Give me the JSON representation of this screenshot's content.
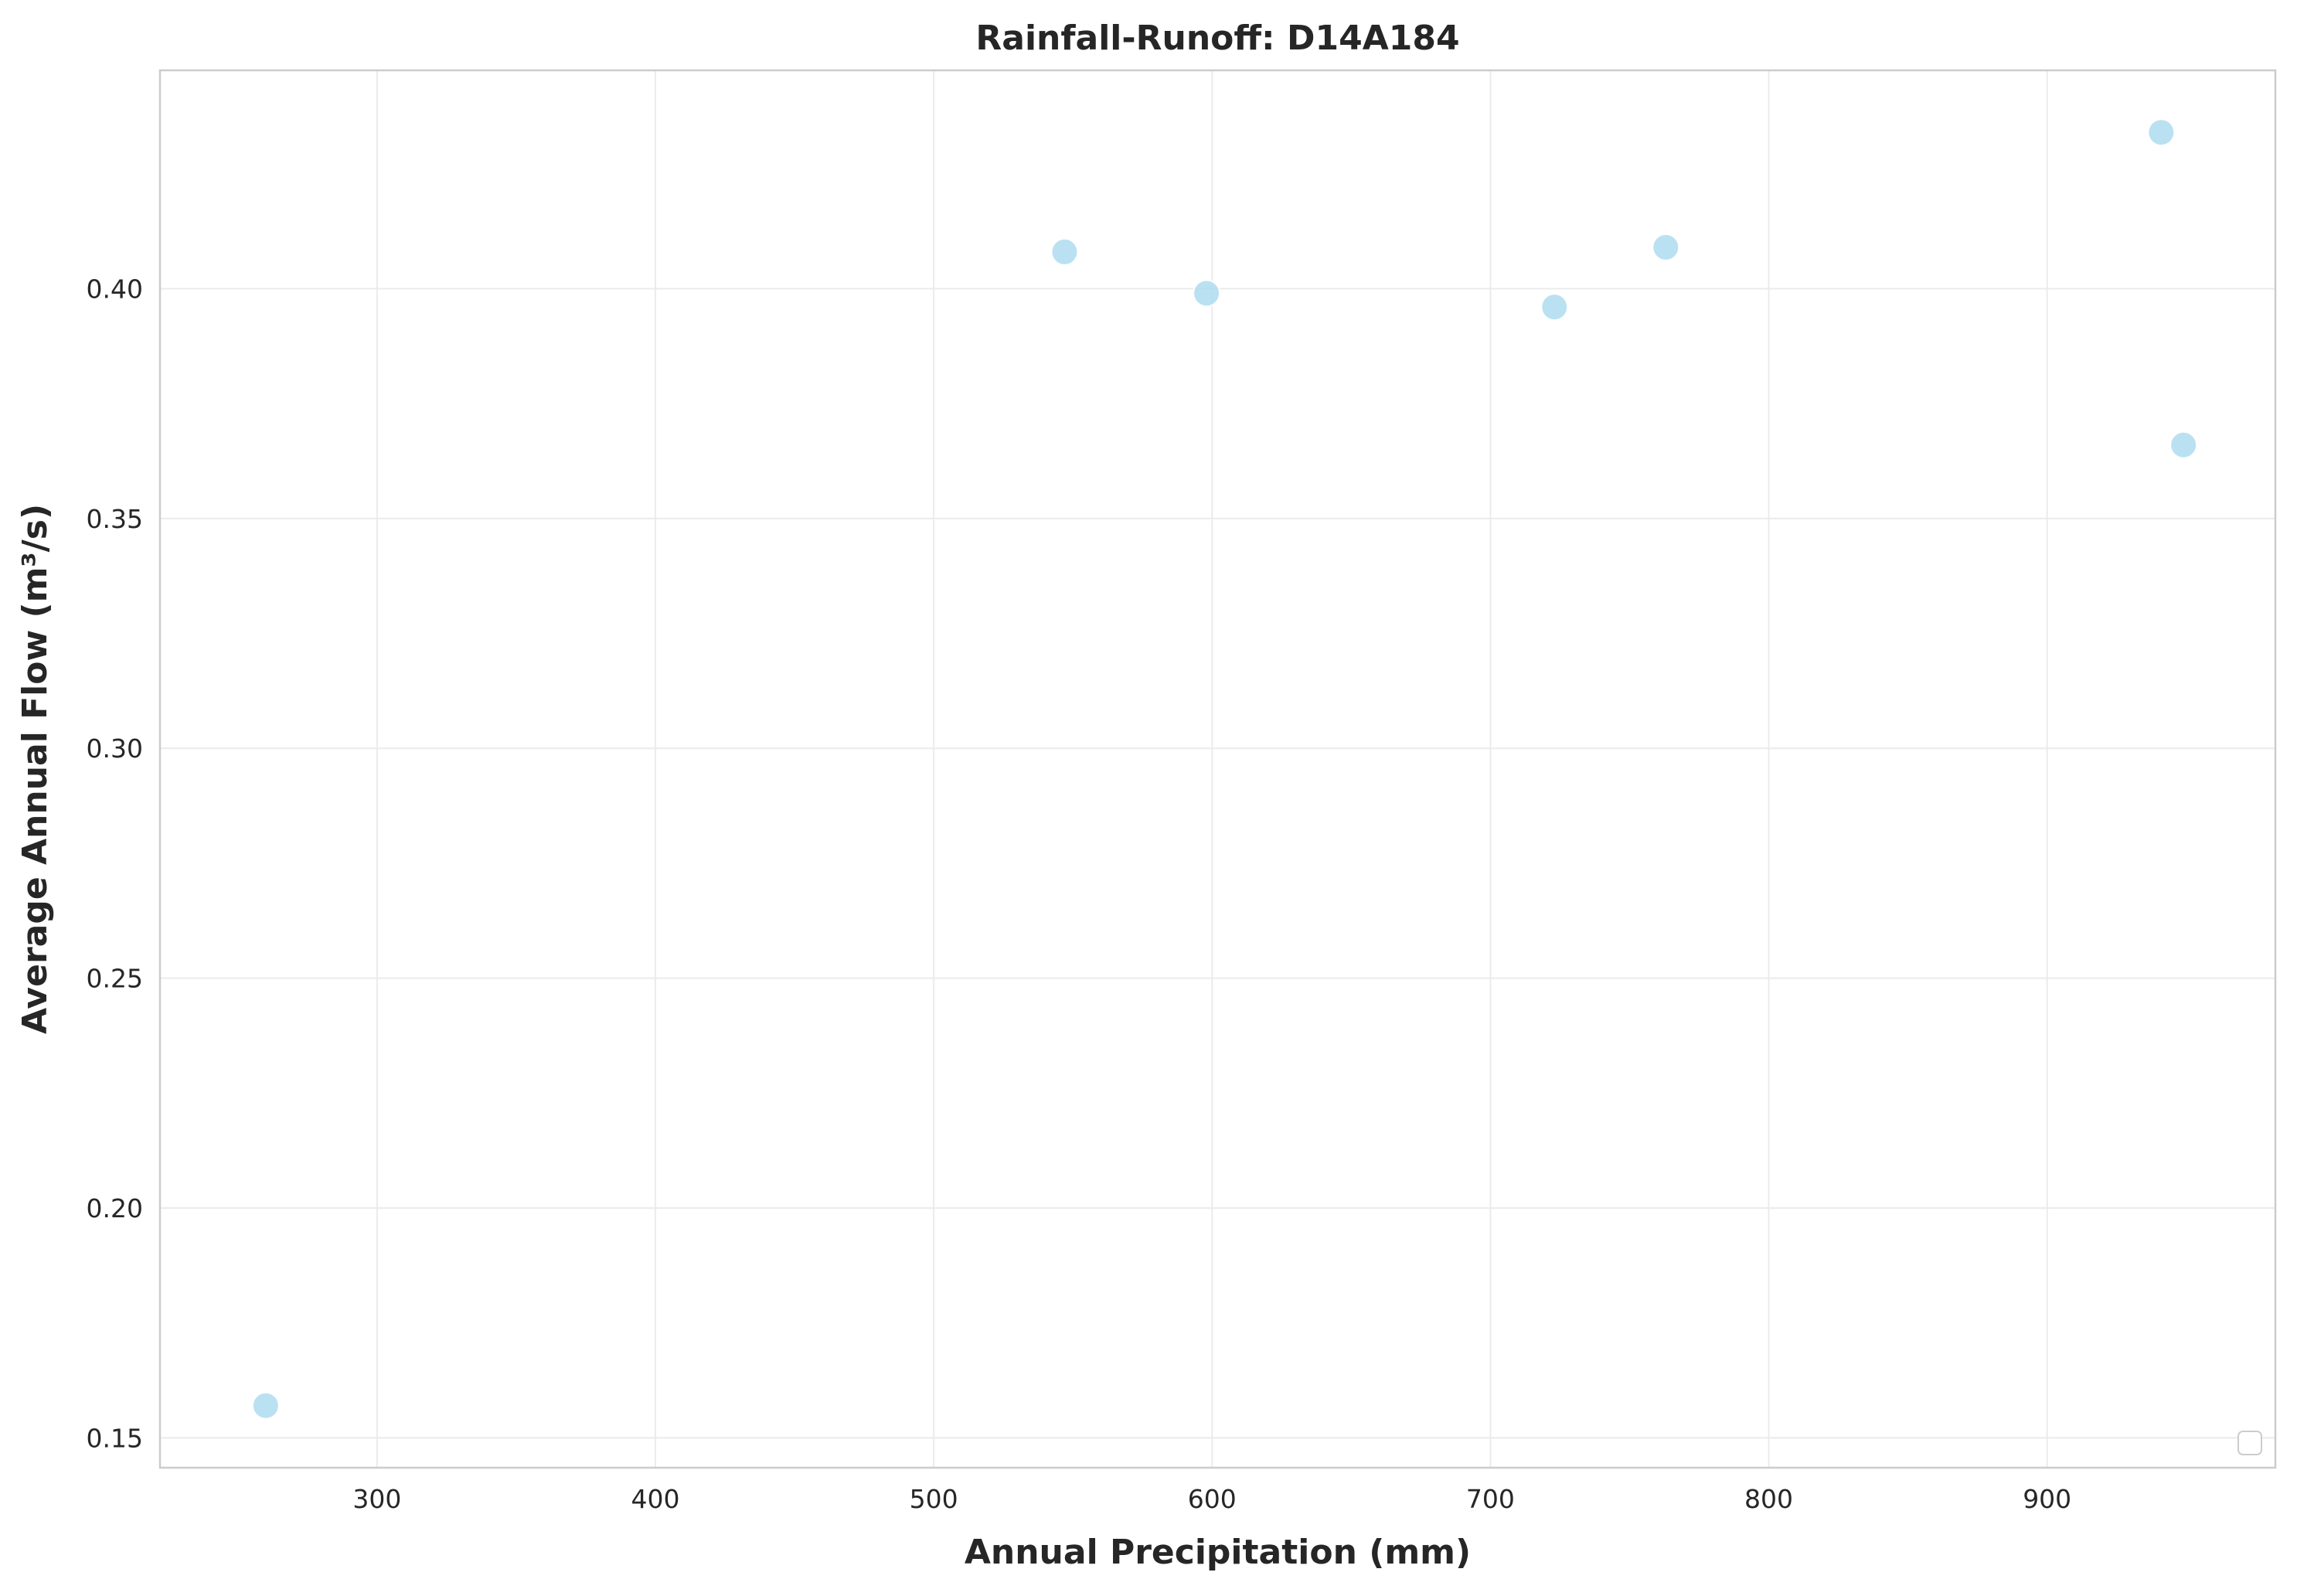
{
  "chart_data": {
    "type": "scatter",
    "title": "Rainfall-Runoff: D14A184",
    "xlabel": "Annual Precipitation (mm)",
    "ylabel": "Average Annual Flow (m³/s)",
    "xlim": [
      222,
      982
    ],
    "ylim": [
      0.1435,
      0.4475
    ],
    "x_ticks": [
      300,
      400,
      500,
      600,
      700,
      800,
      900
    ],
    "x_tick_labels": [
      "300",
      "400",
      "500",
      "600",
      "700",
      "800",
      "900"
    ],
    "y_ticks": [
      0.15,
      0.2,
      0.25,
      0.3,
      0.35,
      0.4
    ],
    "y_tick_labels": [
      "0.15",
      "0.20",
      "0.25",
      "0.30",
      "0.35",
      "0.40"
    ],
    "grid": true,
    "legend": "lower-right",
    "marker_color": "#aedcf0",
    "series": [
      {
        "points": [
          {
            "x": 260,
            "y": 0.157
          },
          {
            "x": 547,
            "y": 0.408
          },
          {
            "x": 598,
            "y": 0.399
          },
          {
            "x": 723,
            "y": 0.396
          },
          {
            "x": 763,
            "y": 0.409
          },
          {
            "x": 941,
            "y": 0.434
          },
          {
            "x": 949,
            "y": 0.366
          }
        ]
      }
    ]
  }
}
